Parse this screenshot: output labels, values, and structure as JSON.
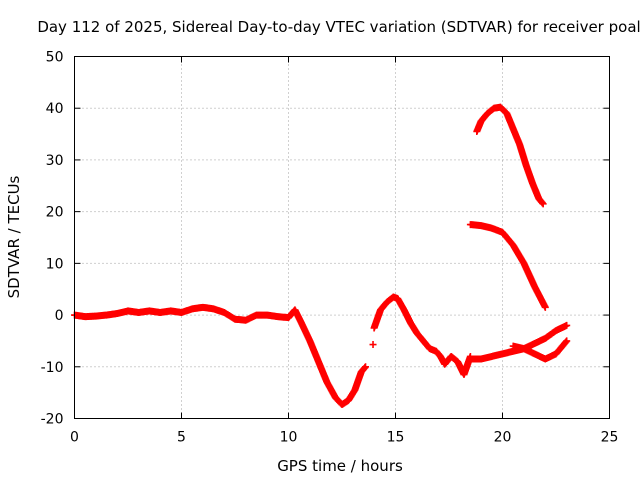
{
  "chart_data": {
    "type": "scatter",
    "title": "Day 112 of 2025, Sidereal Day-to-day VTEC variation (SDTVAR) for receiver poal",
    "xlabel": "GPS time / hours",
    "ylabel": "SDTVAR / TECUs",
    "xlim": [
      0,
      25
    ],
    "ylim": [
      -20,
      50
    ],
    "xticks": [
      0,
      5,
      10,
      15,
      20,
      25
    ],
    "yticks": [
      -20,
      -10,
      0,
      10,
      20,
      30,
      40,
      50
    ],
    "grid": true,
    "marker": "plus",
    "color": "#ff0000",
    "series": [
      {
        "name": "main-track",
        "x": [
          0.0,
          0.5,
          1.0,
          1.5,
          2.0,
          2.5,
          3.0,
          3.5,
          4.0,
          4.5,
          5.0,
          5.5,
          6.0,
          6.5,
          7.0,
          7.5,
          8.0,
          8.5,
          9.0,
          9.5,
          10.0,
          10.3,
          10.6,
          11.0,
          11.4,
          11.8,
          12.2,
          12.5,
          12.8,
          13.1,
          13.4,
          13.6
        ],
        "y": [
          0.0,
          -0.3,
          -0.2,
          0.0,
          0.3,
          0.8,
          0.5,
          0.8,
          0.5,
          0.8,
          0.5,
          1.2,
          1.5,
          1.2,
          0.5,
          -0.8,
          -1.0,
          0.0,
          0.0,
          -0.3,
          -0.5,
          1.0,
          -1.5,
          -5.0,
          -9.0,
          -13.0,
          -16.0,
          -17.3,
          -16.5,
          -14.5,
          -11.0,
          -10.0
        ]
      },
      {
        "name": "isolated-point",
        "x": [
          13.95
        ],
        "y": [
          -5.7
        ]
      },
      {
        "name": "recovery-track",
        "x": [
          14.0,
          14.3,
          14.6,
          14.9,
          15.1,
          15.4,
          15.7,
          16.0,
          16.3,
          16.6,
          16.9,
          17.1,
          17.3,
          17.6,
          17.9,
          18.2,
          18.5
        ],
        "y": [
          -2.5,
          1.0,
          2.5,
          3.5,
          3.2,
          1.0,
          -1.5,
          -3.5,
          -5.0,
          -6.5,
          -7.0,
          -8.0,
          -9.5,
          -8.0,
          -9.0,
          -11.5,
          -8.0
        ]
      },
      {
        "name": "low-track",
        "x": [
          18.5,
          19.0,
          19.5,
          20.0,
          20.5,
          21.0,
          21.5,
          22.0,
          22.5,
          23.0
        ],
        "y": [
          -8.5,
          -8.5,
          -8.0,
          -7.5,
          -7.0,
          -6.5,
          -5.5,
          -4.5,
          -3.0,
          -2.0
        ]
      },
      {
        "name": "descending-branch",
        "x": [
          20.5,
          21.0,
          21.5,
          22.0,
          22.5,
          23.0
        ],
        "y": [
          -6.0,
          -6.5,
          -7.5,
          -8.5,
          -7.5,
          -5.0
        ]
      },
      {
        "name": "upper-arc",
        "x": [
          18.8,
          19.0,
          19.3,
          19.6,
          19.9,
          20.2,
          20.5,
          20.8,
          21.1,
          21.4,
          21.7,
          21.9
        ],
        "y": [
          35.5,
          37.5,
          39.0,
          40.0,
          40.2,
          39.0,
          36.0,
          33.0,
          29.0,
          25.5,
          22.5,
          21.5
        ]
      },
      {
        "name": "middle-arc",
        "x": [
          18.5,
          19.0,
          19.5,
          20.0,
          20.5,
          21.0,
          21.5,
          22.0
        ],
        "y": [
          17.5,
          17.3,
          16.8,
          16.0,
          13.5,
          10.0,
          5.5,
          1.5
        ]
      }
    ]
  }
}
